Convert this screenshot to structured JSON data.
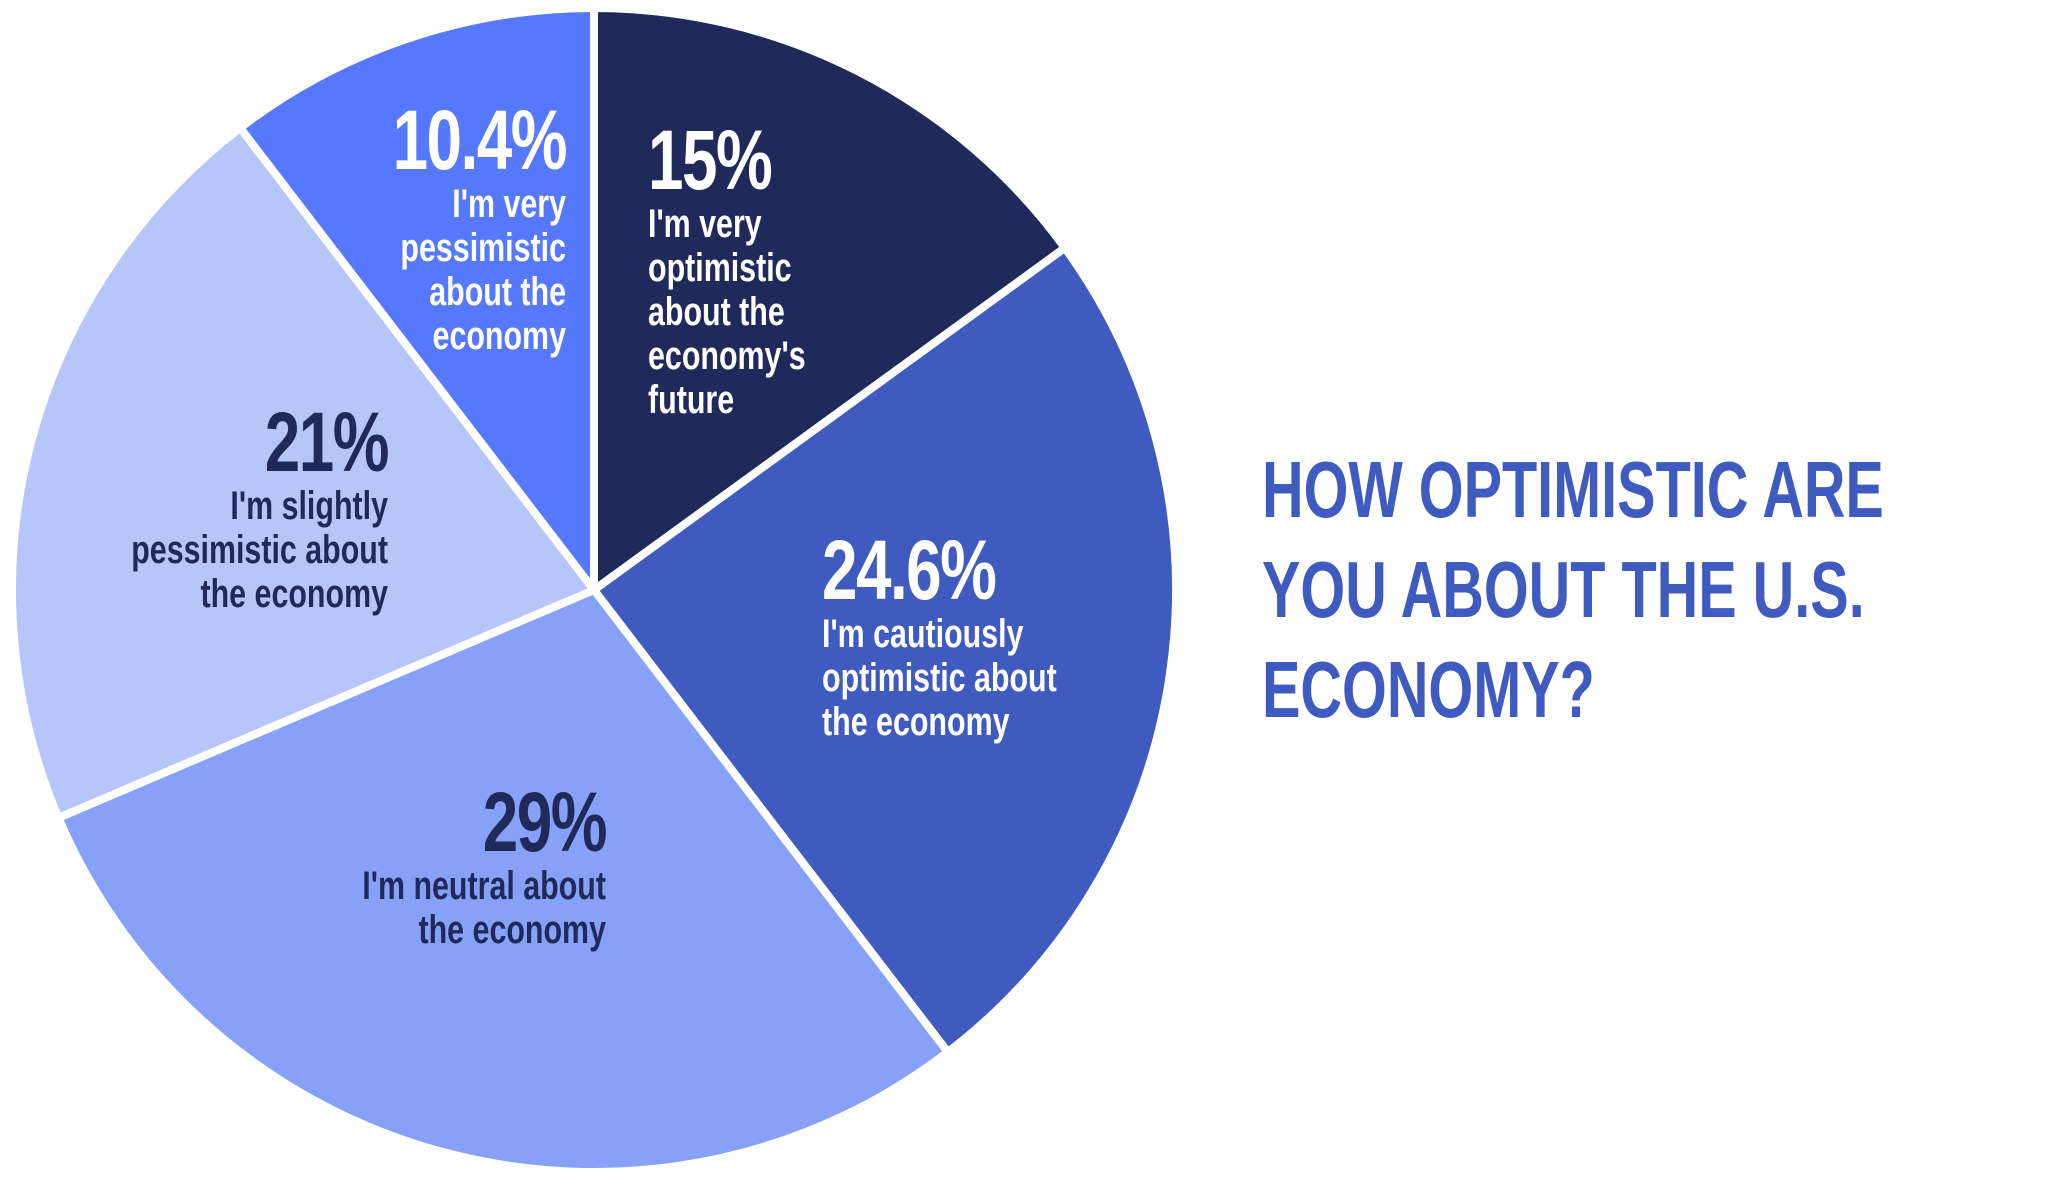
{
  "chart_data": {
    "type": "pie",
    "title": "HOW OPTIMISTIC ARE YOU ABOUT THE U.S. ECONOMY?",
    "categories": [
      "I'm very optimistic about the economy's future",
      "I'm cautiously optimistic about the economy",
      "I'm neutral about the economy",
      "I'm slightly pessimistic about the economy",
      "I'm very pessimistic about the economy"
    ],
    "values": [
      15,
      24.6,
      29,
      21,
      10.4
    ],
    "value_labels": [
      "15%",
      "24.6%",
      "29%",
      "21%",
      "10.4%"
    ],
    "colors": [
      "#1f2a5a",
      "#3f5bbf",
      "#87a0f8",
      "#b7c6fa",
      "#5578fc"
    ]
  }
}
